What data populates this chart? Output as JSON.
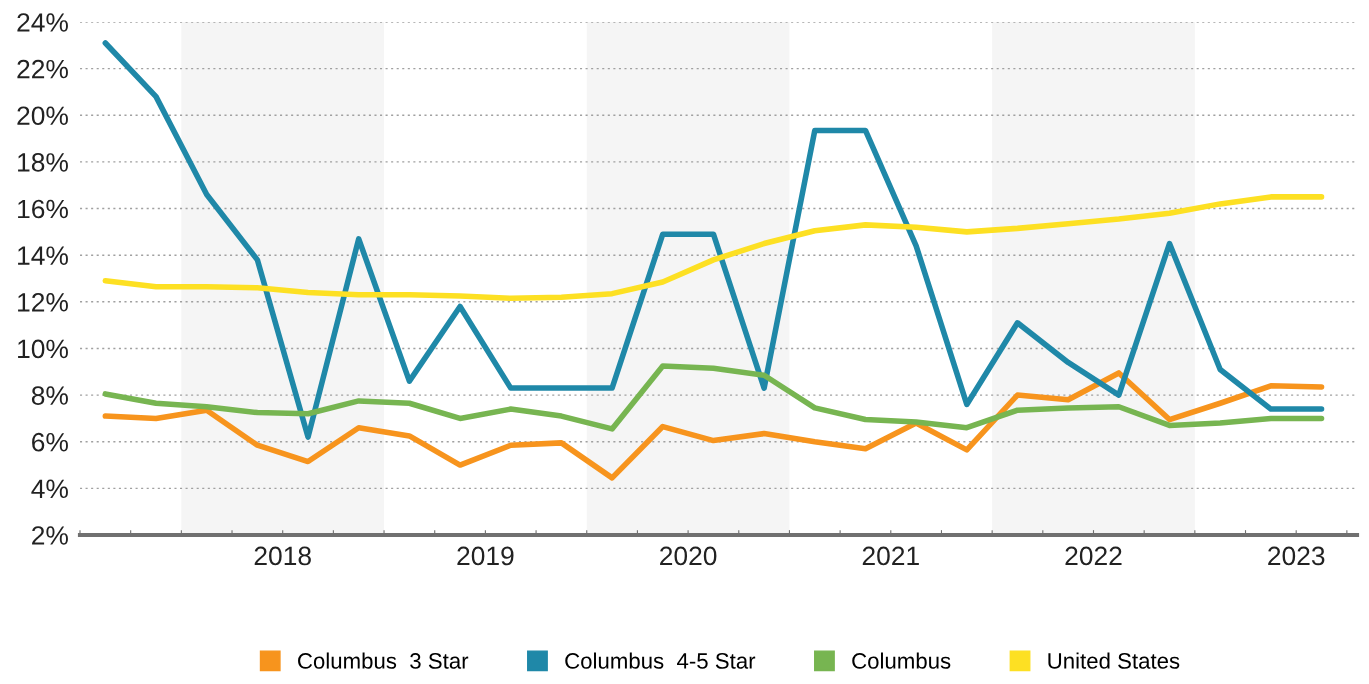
{
  "chart_data": {
    "type": "line",
    "x": [
      2017.625,
      2017.875,
      2018.125,
      2018.375,
      2018.625,
      2018.875,
      2019.125,
      2019.375,
      2019.625,
      2019.875,
      2020.125,
      2020.375,
      2020.625,
      2020.875,
      2021.125,
      2021.375,
      2021.625,
      2021.875,
      2022.125,
      2022.375,
      2022.625,
      2022.875,
      2023.125,
      2023.375,
      2023.625
    ],
    "series": [
      {
        "name": "Columbus  3 Star",
        "color": "#f7941d",
        "values": [
          7.1,
          7.0,
          7.35,
          5.85,
          5.15,
          6.6,
          6.25,
          5.0,
          5.85,
          5.95,
          4.45,
          6.65,
          6.05,
          6.35,
          6.0,
          5.7,
          6.8,
          5.65,
          8.0,
          7.8,
          8.95,
          6.95,
          7.65,
          8.4,
          8.35
        ]
      },
      {
        "name": "Columbus  4-5 Star",
        "color": "#1f88a8",
        "values": [
          23.1,
          20.8,
          16.6,
          13.8,
          6.2,
          14.7,
          8.6,
          11.8,
          8.3,
          8.3,
          8.3,
          14.9,
          14.9,
          8.3,
          19.35,
          19.35,
          14.4,
          7.6,
          11.1,
          9.4,
          8.0,
          14.5,
          9.1,
          7.4,
          7.4
        ]
      },
      {
        "name": "Columbus",
        "color": "#77b551",
        "values": [
          8.05,
          7.65,
          7.5,
          7.25,
          7.2,
          7.75,
          7.65,
          7.0,
          7.4,
          7.1,
          6.55,
          9.25,
          9.15,
          8.85,
          7.45,
          6.95,
          6.85,
          6.6,
          7.35,
          7.45,
          7.5,
          6.7,
          6.8,
          7.0,
          7.0
        ]
      },
      {
        "name": "United States",
        "color": "#fde023",
        "values": [
          12.9,
          12.65,
          12.65,
          12.6,
          12.4,
          12.3,
          12.3,
          12.25,
          12.15,
          12.2,
          12.35,
          12.85,
          13.8,
          14.5,
          15.05,
          15.3,
          15.2,
          15.0,
          15.15,
          15.35,
          15.55,
          15.8,
          16.2,
          16.5,
          16.5
        ]
      }
    ],
    "xlim": [
      2017.5,
      2023.8
    ],
    "xticks": [
      {
        "value": 2017.5,
        "label": null
      },
      {
        "value": 2017.75,
        "label": null
      },
      {
        "value": 2018,
        "label": null
      },
      {
        "value": 2018.25,
        "label": null
      },
      {
        "value": 2018.5,
        "label": "2018"
      },
      {
        "value": 2018.75,
        "label": null
      },
      {
        "value": 2019,
        "label": null
      },
      {
        "value": 2019.25,
        "label": null
      },
      {
        "value": 2019.5,
        "label": "2019"
      },
      {
        "value": 2019.75,
        "label": null
      },
      {
        "value": 2020,
        "label": null
      },
      {
        "value": 2020.25,
        "label": null
      },
      {
        "value": 2020.5,
        "label": "2020"
      },
      {
        "value": 2020.75,
        "label": null
      },
      {
        "value": 2021,
        "label": null
      },
      {
        "value": 2021.25,
        "label": null
      },
      {
        "value": 2021.5,
        "label": "2021"
      },
      {
        "value": 2021.75,
        "label": null
      },
      {
        "value": 2022,
        "label": null
      },
      {
        "value": 2022.25,
        "label": null
      },
      {
        "value": 2022.5,
        "label": "2022"
      },
      {
        "value": 2022.75,
        "label": null
      },
      {
        "value": 2023,
        "label": null
      },
      {
        "value": 2023.25,
        "label": null
      },
      {
        "value": 2023.5,
        "label": "2023"
      },
      {
        "value": 2023.75,
        "label": null
      }
    ],
    "ylim": [
      2,
      24
    ],
    "yticks": [
      {
        "value": 2,
        "label": "2%"
      },
      {
        "value": 4,
        "label": "4%"
      },
      {
        "value": 6,
        "label": "6%"
      },
      {
        "value": 8,
        "label": "8%"
      },
      {
        "value": 10,
        "label": "10%"
      },
      {
        "value": 12,
        "label": "12%"
      },
      {
        "value": 14,
        "label": "14%"
      },
      {
        "value": 16,
        "label": "16%"
      },
      {
        "value": 18,
        "label": "18%"
      },
      {
        "value": 20,
        "label": "20%"
      },
      {
        "value": 22,
        "label": "22%"
      },
      {
        "value": 24,
        "label": "24%"
      }
    ],
    "bands": [
      {
        "axis": "x",
        "from": 2018,
        "to": 2019,
        "color": "#f5f5f5"
      },
      {
        "axis": "x",
        "from": 2020,
        "to": 2021,
        "color": "#f5f5f5"
      },
      {
        "axis": "x",
        "from": 2022,
        "to": 2023,
        "color": "#f5f5f5"
      }
    ],
    "grid": "y",
    "legend": "bottom",
    "marker": "none",
    "line_style": "solid"
  }
}
